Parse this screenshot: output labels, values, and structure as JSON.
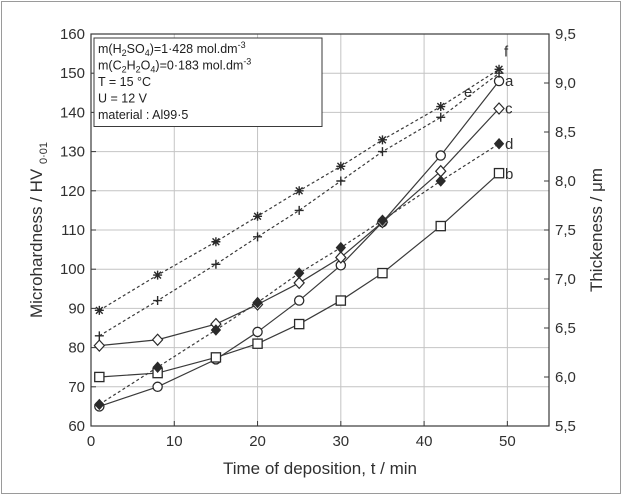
{
  "chart_data": {
    "type": "line",
    "xlabel": "Time of deposition, t / min",
    "ylabel_left": {
      "main": "Microhardness / HV",
      "sub": "0·01"
    },
    "ylabel_right": "Thickeness / μm",
    "xlim": [
      0,
      55
    ],
    "ylim_left": [
      60,
      160
    ],
    "ylim_right": [
      5.5,
      9.5
    ],
    "x_ticks": [
      {
        "value": 0,
        "label": "0"
      },
      {
        "value": 10,
        "label": "10"
      },
      {
        "value": 20,
        "label": "20"
      },
      {
        "value": 30,
        "label": "30"
      },
      {
        "value": 40,
        "label": "40"
      },
      {
        "value": 50,
        "label": "50"
      }
    ],
    "y_left_ticks": [
      {
        "value": 60,
        "label": "60"
      },
      {
        "value": 70,
        "label": "70"
      },
      {
        "value": 80,
        "label": "80"
      },
      {
        "value": 90,
        "label": "90"
      },
      {
        "value": 100,
        "label": "100"
      },
      {
        "value": 110,
        "label": "110"
      },
      {
        "value": 120,
        "label": "120"
      },
      {
        "value": 130,
        "label": "130"
      },
      {
        "value": 140,
        "label": "140"
      },
      {
        "value": 150,
        "label": "150"
      },
      {
        "value": 160,
        "label": "160"
      }
    ],
    "y_right_ticks": [
      {
        "value": 5.5,
        "label": "5,5"
      },
      {
        "value": 6.0,
        "label": "6,0"
      },
      {
        "value": 6.5,
        "label": "6,5"
      },
      {
        "value": 7.0,
        "label": "7,0"
      },
      {
        "value": 7.5,
        "label": "7,5"
      },
      {
        "value": 8.0,
        "label": "8,0"
      },
      {
        "value": 8.5,
        "label": "8,5"
      },
      {
        "value": 9.0,
        "label": "9,0"
      },
      {
        "value": 9.5,
        "label": "9,5"
      }
    ],
    "grid": true,
    "legend_position": "top-left",
    "legend_lines": [
      {
        "parts": [
          {
            "t": "m(H"
          },
          {
            "t": "2",
            "sub": true
          },
          {
            "t": "SO"
          },
          {
            "t": "4",
            "sub": true
          },
          {
            "t": ")=1·428 mol.dm"
          },
          {
            "t": "-3",
            "sup": true
          }
        ]
      },
      {
        "parts": [
          {
            "t": "m(C"
          },
          {
            "t": "2",
            "sub": true
          },
          {
            "t": "H"
          },
          {
            "t": "2",
            "sub": true
          },
          {
            "t": "O"
          },
          {
            "t": "4",
            "sub": true
          },
          {
            "t": ")=0·183 mol.dm"
          },
          {
            "t": "-3",
            "sup": true
          }
        ]
      },
      {
        "parts": [
          {
            "t": "T = 15 °C"
          }
        ]
      },
      {
        "parts": [
          {
            "t": "U = 12 V"
          }
        ]
      },
      {
        "parts": [
          {
            "t": "material : Al99·5"
          }
        ]
      }
    ],
    "series": [
      {
        "name": "a",
        "axis": "left",
        "marker": "circle",
        "style": "solid",
        "x": [
          1,
          8,
          15,
          20,
          25,
          30,
          35,
          42,
          49
        ],
        "y": [
          65,
          70,
          77,
          84,
          92,
          101,
          112,
          129,
          148
        ]
      },
      {
        "name": "b",
        "axis": "left",
        "marker": "square",
        "style": "solid",
        "x": [
          1,
          8,
          15,
          20,
          25,
          30,
          35,
          42,
          49
        ],
        "y": [
          72.5,
          73.5,
          77.5,
          81,
          86,
          92,
          99,
          111,
          124.5
        ]
      },
      {
        "name": "c",
        "axis": "left",
        "marker": "diamond-open",
        "style": "solid",
        "x": [
          1,
          8,
          15,
          20,
          25,
          30,
          35,
          42,
          49
        ],
        "y": [
          80.5,
          82,
          86,
          91,
          96.5,
          103,
          112,
          125,
          141
        ]
      },
      {
        "name": "d",
        "axis": "left",
        "marker": "diamond-filled",
        "style": "dashed",
        "x": [
          1,
          8,
          15,
          20,
          25,
          30,
          35,
          42,
          49
        ],
        "y": [
          65.5,
          75,
          84.5,
          91.5,
          99,
          105.5,
          112.5,
          122.5,
          132
        ]
      },
      {
        "name": "e",
        "axis": "right",
        "marker": "plus",
        "style": "dashed",
        "x": [
          1,
          8,
          15,
          20,
          25,
          30,
          35,
          42,
          49
        ],
        "y": [
          6.42,
          6.78,
          7.15,
          7.43,
          7.7,
          8.0,
          8.3,
          8.65,
          9.1
        ]
      },
      {
        "name": "f",
        "axis": "right",
        "marker": "asterisk",
        "style": "dashed",
        "x": [
          1,
          8,
          15,
          20,
          25,
          30,
          35,
          42,
          49
        ],
        "y": [
          6.68,
          7.04,
          7.38,
          7.64,
          7.9,
          8.15,
          8.42,
          8.76,
          9.14
        ]
      }
    ]
  }
}
